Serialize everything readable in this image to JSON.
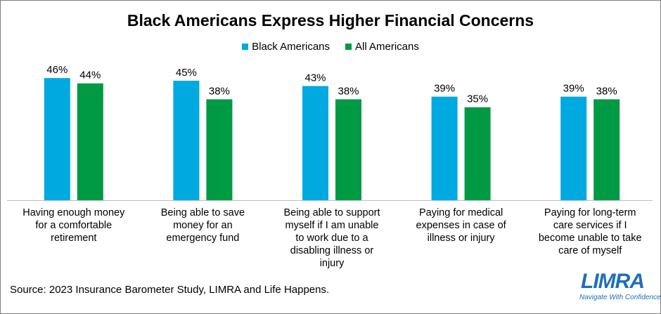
{
  "chart_data": {
    "type": "bar",
    "title": "Black Americans Express Higher Financial Concerns",
    "categories": [
      "Having enough money for a comfortable retirement",
      "Being able to save money for an emergency fund",
      "Being able to support myself if I am unable to work due to a disabling illness or injury",
      "Paying for medical expenses in case of illness or injury",
      "Paying for long-term care services if I become unable to take care of myself"
    ],
    "category_lines": [
      [
        "Having enough money",
        "for a comfortable",
        "retirement"
      ],
      [
        "Being able to save",
        "money for an",
        "emergency fund"
      ],
      [
        "Being able to support",
        "myself if I am unable",
        "to work due to a",
        "disabling illness or",
        "injury"
      ],
      [
        "Paying for medical",
        "expenses in case of",
        "illness or injury"
      ],
      [
        "Paying for long-term",
        "care services if I",
        "become unable to take",
        "care of myself"
      ]
    ],
    "series": [
      {
        "name": "Black Americans",
        "values": [
          46,
          45,
          43,
          39,
          39
        ],
        "labels": [
          "46%",
          "45%",
          "43%",
          "39%",
          "39%"
        ],
        "color": "#00a9e0"
      },
      {
        "name": "All Americans",
        "values": [
          44,
          38,
          38,
          35,
          38
        ],
        "labels": [
          "44%",
          "38%",
          "38%",
          "35%",
          "38%"
        ],
        "color": "#009a44"
      }
    ],
    "ylim": [
      0,
      50
    ],
    "xlabel": "",
    "ylabel": "",
    "grid": false,
    "legend_position": "top"
  },
  "source": "Source: 2023 Insurance Barometer Study, LIMRA and Life Happens.",
  "logo": {
    "name": "LIMRA",
    "tagline": "Navigate With Confidence"
  }
}
